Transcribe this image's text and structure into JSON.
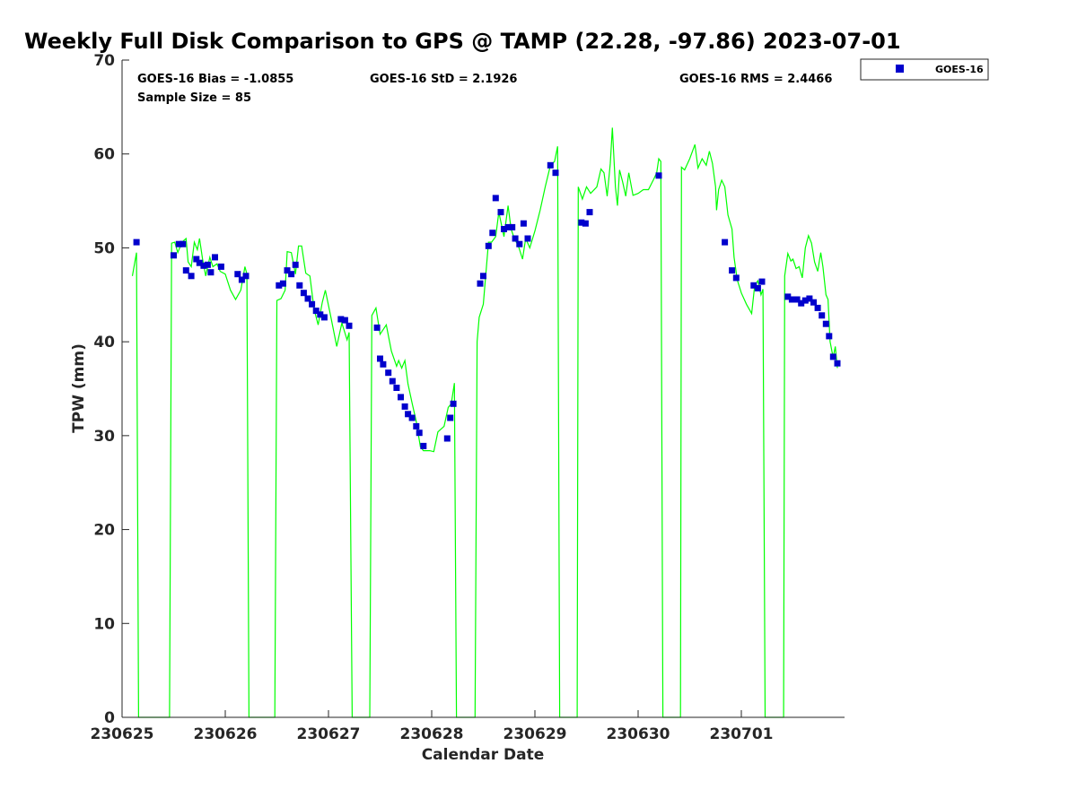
{
  "chart_data": {
    "type": "scatter",
    "title": "Weekly Full Disk Comparison to GPS @ TAMP (22.28, -97.86) 2023-07-01",
    "xlabel": "Calendar Date",
    "ylabel": "TPW (mm)",
    "xlim": [
      0,
      7
    ],
    "ylim": [
      0,
      70
    ],
    "yticks": [
      0,
      10,
      20,
      30,
      40,
      50,
      60,
      70
    ],
    "xticks": [
      {
        "value": 0,
        "label": "230625"
      },
      {
        "value": 1,
        "label": "230626"
      },
      {
        "value": 2,
        "label": "230627"
      },
      {
        "value": 3,
        "label": "230628"
      },
      {
        "value": 4,
        "label": "230629"
      },
      {
        "value": 5,
        "label": "230630"
      },
      {
        "value": 6,
        "label": "230701"
      }
    ],
    "grid": false,
    "legend_position": "top-right",
    "stats": {
      "bias": "GOES-16 Bias = -1.0855",
      "std": "GOES-16 StD = 2.1926",
      "rms": "GOES-16 RMS = 2.4466",
      "sample": "Sample Size = 85"
    },
    "series": [
      {
        "name": "GOES-16",
        "color": "#0000cc",
        "marker": "square",
        "points": [
          [
            0.14,
            50.6
          ],
          [
            0.5,
            49.2
          ],
          [
            0.55,
            50.4
          ],
          [
            0.59,
            50.4
          ],
          [
            0.62,
            47.6
          ],
          [
            0.67,
            47.0
          ],
          [
            0.72,
            48.8
          ],
          [
            0.75,
            48.4
          ],
          [
            0.79,
            48.1
          ],
          [
            0.83,
            48.2
          ],
          [
            0.86,
            47.4
          ],
          [
            0.9,
            49.0
          ],
          [
            0.96,
            48.0
          ],
          [
            1.12,
            47.2
          ],
          [
            1.16,
            46.6
          ],
          [
            1.2,
            47.0
          ],
          [
            1.52,
            46.0
          ],
          [
            1.56,
            46.2
          ],
          [
            1.6,
            47.6
          ],
          [
            1.64,
            47.2
          ],
          [
            1.68,
            48.2
          ],
          [
            1.72,
            46.0
          ],
          [
            1.76,
            45.2
          ],
          [
            1.8,
            44.6
          ],
          [
            1.84,
            44.0
          ],
          [
            1.88,
            43.3
          ],
          [
            1.92,
            42.9
          ],
          [
            1.96,
            42.6
          ],
          [
            2.12,
            42.4
          ],
          [
            2.16,
            42.3
          ],
          [
            2.2,
            41.7
          ],
          [
            2.47,
            41.5
          ],
          [
            2.5,
            38.2
          ],
          [
            2.53,
            37.6
          ],
          [
            2.58,
            36.7
          ],
          [
            2.62,
            35.8
          ],
          [
            2.66,
            35.1
          ],
          [
            2.7,
            34.1
          ],
          [
            2.74,
            33.1
          ],
          [
            2.77,
            32.3
          ],
          [
            2.81,
            31.9
          ],
          [
            2.85,
            31.0
          ],
          [
            2.88,
            30.3
          ],
          [
            2.92,
            28.9
          ],
          [
            3.15,
            29.7
          ],
          [
            3.18,
            31.9
          ],
          [
            3.21,
            33.4
          ],
          [
            3.47,
            46.2
          ],
          [
            3.5,
            47.0
          ],
          [
            3.55,
            50.2
          ],
          [
            3.59,
            51.6
          ],
          [
            3.62,
            55.3
          ],
          [
            3.67,
            53.8
          ],
          [
            3.7,
            52.0
          ],
          [
            3.74,
            52.2
          ],
          [
            3.78,
            52.2
          ],
          [
            3.81,
            51.0
          ],
          [
            3.85,
            50.4
          ],
          [
            3.89,
            52.6
          ],
          [
            3.93,
            51.0
          ],
          [
            4.15,
            58.8
          ],
          [
            4.2,
            58.0
          ],
          [
            4.45,
            52.7
          ],
          [
            4.49,
            52.6
          ],
          [
            4.53,
            53.8
          ],
          [
            5.2,
            57.7
          ],
          [
            5.84,
            50.6
          ],
          [
            5.91,
            47.6
          ],
          [
            5.95,
            46.8
          ],
          [
            6.12,
            46.0
          ],
          [
            6.16,
            45.7
          ],
          [
            6.2,
            46.4
          ],
          [
            6.45,
            44.8
          ],
          [
            6.49,
            44.5
          ],
          [
            6.54,
            44.5
          ],
          [
            6.58,
            44.1
          ],
          [
            6.62,
            44.4
          ],
          [
            6.66,
            44.6
          ],
          [
            6.7,
            44.2
          ],
          [
            6.74,
            43.6
          ],
          [
            6.78,
            42.8
          ],
          [
            6.82,
            41.9
          ],
          [
            6.85,
            40.6
          ],
          [
            6.89,
            38.4
          ],
          [
            6.93,
            37.7
          ]
        ]
      },
      {
        "color": "#00ff00",
        "marker": "line",
        "points": [
          [
            0.1,
            47.0
          ],
          [
            0.14,
            49.5
          ],
          [
            0.16,
            0
          ],
          [
            0.46,
            0
          ],
          [
            0.48,
            50.5
          ],
          [
            0.51,
            50.6
          ],
          [
            0.54,
            49.5
          ],
          [
            0.58,
            50.6
          ],
          [
            0.62,
            51.0
          ],
          [
            0.64,
            48.5
          ],
          [
            0.67,
            48.0
          ],
          [
            0.7,
            50.6
          ],
          [
            0.73,
            49.8
          ],
          [
            0.75,
            51.0
          ],
          [
            0.78,
            48.8
          ],
          [
            0.81,
            47.0
          ],
          [
            0.85,
            49.0
          ],
          [
            0.88,
            48.0
          ],
          [
            0.92,
            48.3
          ],
          [
            0.95,
            47.5
          ],
          [
            1.0,
            47.2
          ],
          [
            1.05,
            45.5
          ],
          [
            1.1,
            44.5
          ],
          [
            1.15,
            45.5
          ],
          [
            1.19,
            48.0
          ],
          [
            1.21,
            47.2
          ],
          [
            1.23,
            0
          ],
          [
            1.48,
            0
          ],
          [
            1.5,
            44.4
          ],
          [
            1.54,
            44.6
          ],
          [
            1.58,
            45.5
          ],
          [
            1.6,
            49.6
          ],
          [
            1.64,
            49.5
          ],
          [
            1.68,
            47.2
          ],
          [
            1.71,
            50.2
          ],
          [
            1.74,
            50.2
          ],
          [
            1.78,
            47.3
          ],
          [
            1.82,
            47.0
          ],
          [
            1.86,
            43.5
          ],
          [
            1.9,
            41.8
          ],
          [
            1.94,
            44.2
          ],
          [
            1.97,
            45.5
          ],
          [
            2.02,
            42.8
          ],
          [
            2.08,
            39.5
          ],
          [
            2.13,
            42.0
          ],
          [
            2.18,
            40.2
          ],
          [
            2.2,
            41.0
          ],
          [
            2.23,
            0
          ],
          [
            2.4,
            0
          ],
          [
            2.42,
            42.8
          ],
          [
            2.46,
            43.6
          ],
          [
            2.5,
            40.8
          ],
          [
            2.56,
            41.8
          ],
          [
            2.61,
            39.0
          ],
          [
            2.66,
            37.4
          ],
          [
            2.68,
            38.0
          ],
          [
            2.71,
            37.2
          ],
          [
            2.74,
            38.0
          ],
          [
            2.77,
            35.5
          ],
          [
            2.81,
            33.5
          ],
          [
            2.85,
            31.5
          ],
          [
            2.89,
            28.8
          ],
          [
            2.92,
            28.4
          ],
          [
            2.98,
            28.4
          ],
          [
            3.02,
            28.3
          ],
          [
            3.06,
            30.4
          ],
          [
            3.12,
            31.0
          ],
          [
            3.16,
            33.0
          ],
          [
            3.19,
            33.4
          ],
          [
            3.22,
            35.6
          ],
          [
            3.24,
            0
          ],
          [
            3.42,
            0
          ],
          [
            3.44,
            40.0
          ],
          [
            3.46,
            42.6
          ],
          [
            3.5,
            44.0
          ],
          [
            3.55,
            50.6
          ],
          [
            3.58,
            50.6
          ],
          [
            3.62,
            51.2
          ],
          [
            3.65,
            53.8
          ],
          [
            3.7,
            51.2
          ],
          [
            3.74,
            54.5
          ],
          [
            3.77,
            52.0
          ],
          [
            3.8,
            51.0
          ],
          [
            3.84,
            50.2
          ],
          [
            3.88,
            48.8
          ],
          [
            3.91,
            51.0
          ],
          [
            3.95,
            50.0
          ],
          [
            4.0,
            51.8
          ],
          [
            4.05,
            54.0
          ],
          [
            4.1,
            56.5
          ],
          [
            4.15,
            58.8
          ],
          [
            4.19,
            59.2
          ],
          [
            4.22,
            60.8
          ],
          [
            4.24,
            0
          ],
          [
            4.41,
            0
          ],
          [
            4.42,
            56.5
          ],
          [
            4.46,
            55.2
          ],
          [
            4.5,
            56.5
          ],
          [
            4.54,
            55.8
          ],
          [
            4.6,
            56.5
          ],
          [
            4.64,
            58.4
          ],
          [
            4.67,
            58.0
          ],
          [
            4.7,
            55.5
          ],
          [
            4.73,
            59.0
          ],
          [
            4.75,
            62.8
          ],
          [
            4.78,
            56.5
          ],
          [
            4.8,
            54.5
          ],
          [
            4.82,
            58.3
          ],
          [
            4.85,
            57.0
          ],
          [
            4.88,
            55.5
          ],
          [
            4.91,
            58.0
          ],
          [
            4.95,
            55.6
          ],
          [
            5.0,
            55.8
          ],
          [
            5.05,
            56.2
          ],
          [
            5.1,
            56.2
          ],
          [
            5.15,
            57.3
          ],
          [
            5.18,
            58.0
          ],
          [
            5.2,
            59.5
          ],
          [
            5.22,
            59.2
          ],
          [
            5.24,
            0
          ],
          [
            5.41,
            0
          ],
          [
            5.42,
            58.6
          ],
          [
            5.45,
            58.3
          ],
          [
            5.5,
            59.5
          ],
          [
            5.55,
            61.0
          ],
          [
            5.58,
            58.5
          ],
          [
            5.62,
            59.5
          ],
          [
            5.66,
            58.8
          ],
          [
            5.69,
            60.3
          ],
          [
            5.72,
            59.0
          ],
          [
            5.75,
            56.5
          ],
          [
            5.76,
            54.0
          ],
          [
            5.78,
            56.2
          ],
          [
            5.81,
            57.2
          ],
          [
            5.84,
            56.5
          ],
          [
            5.87,
            53.5
          ],
          [
            5.91,
            52.0
          ],
          [
            5.93,
            49.0
          ],
          [
            5.96,
            46.6
          ],
          [
            6.0,
            45.2
          ],
          [
            6.05,
            44.0
          ],
          [
            6.1,
            43.0
          ],
          [
            6.13,
            46.0
          ],
          [
            6.16,
            46.5
          ],
          [
            6.19,
            45.0
          ],
          [
            6.21,
            45.6
          ],
          [
            6.23,
            0
          ],
          [
            6.41,
            0
          ],
          [
            6.42,
            47.0
          ],
          [
            6.45,
            49.4
          ],
          [
            6.48,
            48.6
          ],
          [
            6.5,
            48.8
          ],
          [
            6.53,
            47.8
          ],
          [
            6.56,
            48.0
          ],
          [
            6.59,
            46.8
          ],
          [
            6.62,
            50.0
          ],
          [
            6.65,
            51.3
          ],
          [
            6.68,
            50.5
          ],
          [
            6.71,
            48.5
          ],
          [
            6.74,
            47.5
          ],
          [
            6.77,
            49.5
          ],
          [
            6.79,
            48.0
          ],
          [
            6.82,
            45.0
          ],
          [
            6.84,
            44.5
          ],
          [
            6.86,
            40.0
          ],
          [
            6.89,
            38.3
          ],
          [
            6.91,
            39.5
          ],
          [
            6.93,
            37.2
          ]
        ]
      }
    ]
  }
}
